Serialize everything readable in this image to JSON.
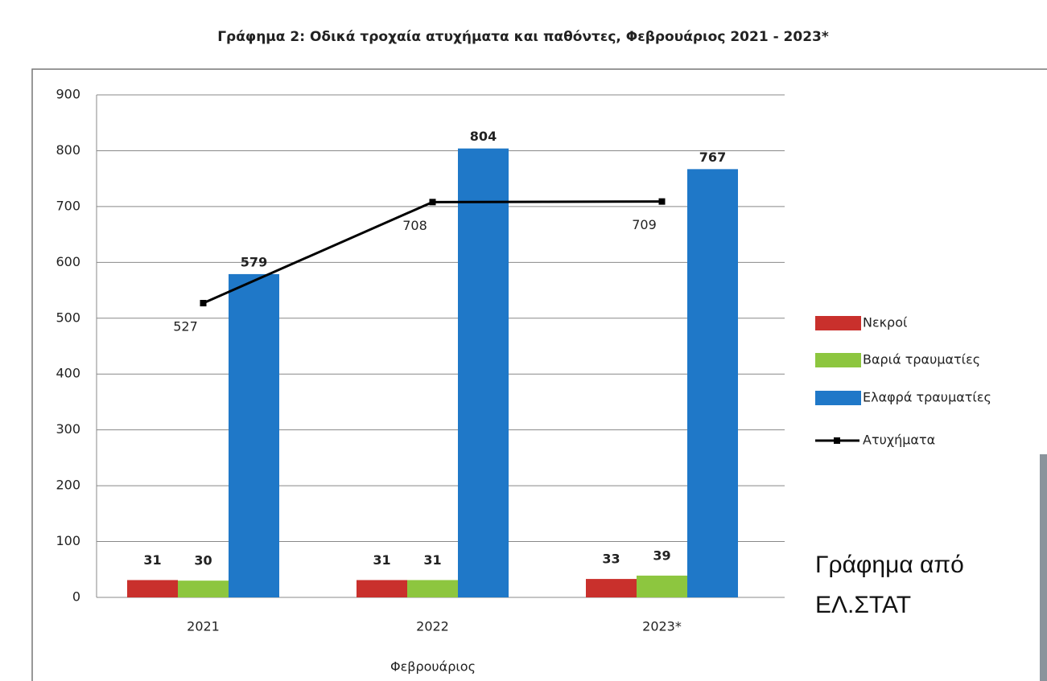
{
  "chart_data": {
    "type": "bar",
    "title": "Γράφημα 2: Οδικά τροχαία ατυχήματα και παθόντες, Φεβρουάριος 2021 - 2023*",
    "x_label": "Φεβρουάριος",
    "categories": [
      "2021",
      "2022",
      "2023*"
    ],
    "series": [
      {
        "name": "Νεκροί",
        "type": "bar",
        "color": "#c9302c",
        "values": [
          31,
          31,
          33
        ]
      },
      {
        "name": "Βαριά τραυματίες",
        "type": "bar",
        "color": "#8dc63f",
        "values": [
          30,
          31,
          39
        ]
      },
      {
        "name": "Ελαφρά τραυματίες",
        "type": "bar",
        "color": "#1f78c8",
        "values": [
          579,
          804,
          767
        ]
      },
      {
        "name": "Ατυχήματα",
        "type": "line",
        "color": "#000000",
        "values": [
          527,
          708,
          709
        ]
      }
    ],
    "ylim": [
      0,
      900
    ],
    "yticks": [
      0,
      100,
      200,
      300,
      400,
      500,
      600,
      700,
      800,
      900
    ],
    "grid": true,
    "legend": "right",
    "annotation": "Γράφημα από ΕΛ.ΣΤΑΤ"
  }
}
